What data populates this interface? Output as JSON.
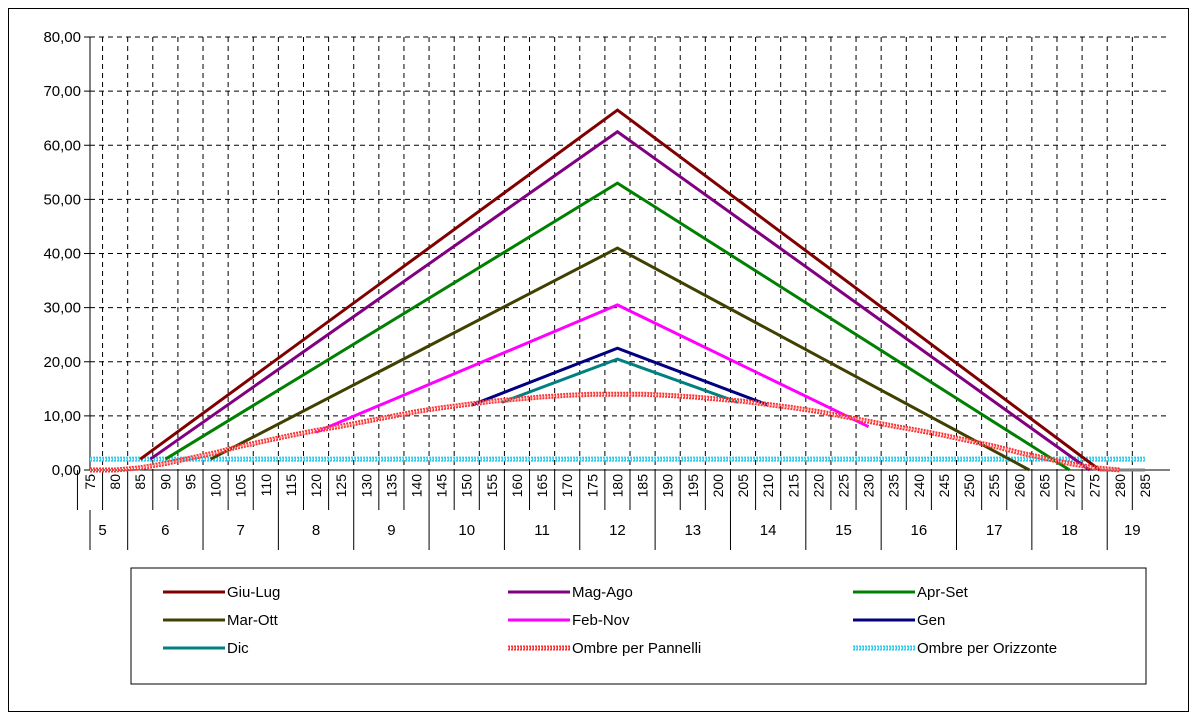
{
  "chart_data": {
    "type": "line",
    "x": [
      75,
      80,
      85,
      90,
      95,
      100,
      105,
      110,
      115,
      120,
      125,
      130,
      135,
      140,
      145,
      150,
      155,
      160,
      165,
      170,
      175,
      180,
      185,
      190,
      195,
      200,
      205,
      210,
      215,
      220,
      225,
      230,
      235,
      240,
      245,
      250,
      255,
      260,
      265,
      270,
      275,
      280,
      285
    ],
    "x_tick_labels": [
      "75",
      "80",
      "85",
      "90",
      "95",
      "100",
      "105",
      "110",
      "115",
      "120",
      "125",
      "130",
      "135",
      "140",
      "145",
      "150",
      "155",
      "160",
      "165",
      "170",
      "175",
      "180",
      "185",
      "190",
      "195",
      "200",
      "205",
      "210",
      "215",
      "220",
      "225",
      "230",
      "235",
      "240",
      "245",
      "250",
      "255",
      "260",
      "265",
      "270",
      "275",
      "280",
      "285"
    ],
    "hour_groups": [
      {
        "label": "5",
        "from": 75,
        "to": 85
      },
      {
        "label": "6",
        "from": 85,
        "to": 100
      },
      {
        "label": "7",
        "from": 100,
        "to": 115
      },
      {
        "label": "8",
        "from": 115,
        "to": 130
      },
      {
        "label": "9",
        "from": 130,
        "to": 145
      },
      {
        "label": "10",
        "from": 145,
        "to": 160
      },
      {
        "label": "11",
        "from": 160,
        "to": 175
      },
      {
        "label": "12",
        "from": 175,
        "to": 190
      },
      {
        "label": "13",
        "from": 190,
        "to": 205
      },
      {
        "label": "14",
        "from": 205,
        "to": 220
      },
      {
        "label": "15",
        "from": 220,
        "to": 235
      },
      {
        "label": "16",
        "from": 235,
        "to": 250
      },
      {
        "label": "17",
        "from": 250,
        "to": 265
      },
      {
        "label": "18",
        "from": 265,
        "to": 280
      },
      {
        "label": "19",
        "from": 280,
        "to": 290
      }
    ],
    "ylim": [
      0,
      80
    ],
    "y_ticks": [
      "0,00",
      "10,00",
      "20,00",
      "30,00",
      "40,00",
      "50,00",
      "60,00",
      "70,00",
      "80,00"
    ],
    "grid": true,
    "legend_position": "bottom",
    "series": [
      {
        "name": "Giu-Lug",
        "color": "#800000",
        "style": "solid",
        "points": [
          [
            85,
            2
          ],
          [
            180,
            66.5
          ],
          [
            276,
            0
          ]
        ]
      },
      {
        "name": "Mag-Ago",
        "color": "#800080",
        "style": "solid",
        "points": [
          [
            87,
            2
          ],
          [
            180,
            62.5
          ],
          [
            274,
            0
          ]
        ]
      },
      {
        "name": "Apr-Set",
        "color": "#008000",
        "style": "solid",
        "points": [
          [
            90,
            2
          ],
          [
            180,
            53
          ],
          [
            270,
            0
          ]
        ]
      },
      {
        "name": "Mar-Ott",
        "color": "#404000",
        "style": "solid",
        "points": [
          [
            99,
            2
          ],
          [
            180,
            41
          ],
          [
            262,
            0
          ]
        ]
      },
      {
        "name": "Feb-Nov",
        "color": "#ff00ff",
        "style": "solid",
        "points": [
          [
            120,
            7
          ],
          [
            180,
            30.5
          ],
          [
            230,
            8
          ]
        ]
      },
      {
        "name": "Gen",
        "color": "#000080",
        "style": "solid",
        "points": [
          [
            151,
            12
          ],
          [
            180,
            22.5
          ],
          [
            210,
            12
          ]
        ]
      },
      {
        "name": "Dic",
        "color": "#008080",
        "style": "solid",
        "points": [
          [
            157,
            12.5
          ],
          [
            180,
            20.5
          ],
          [
            204,
            12.5
          ]
        ]
      },
      {
        "name": "Ombre per Pannelli",
        "color": "#ff3333",
        "style": "pannelli",
        "points": [
          [
            75,
            0
          ],
          [
            80,
            0
          ],
          [
            85,
            0.4
          ],
          [
            90,
            1.2
          ],
          [
            95,
            2.2
          ],
          [
            100,
            3.2
          ],
          [
            105,
            4.4
          ],
          [
            110,
            5.4
          ],
          [
            115,
            6.4
          ],
          [
            120,
            7.3
          ],
          [
            125,
            8.1
          ],
          [
            130,
            9
          ],
          [
            135,
            9.9
          ],
          [
            140,
            10.8
          ],
          [
            145,
            11.5
          ],
          [
            150,
            12.1
          ],
          [
            155,
            12.7
          ],
          [
            160,
            13.1
          ],
          [
            165,
            13.5
          ],
          [
            170,
            13.8
          ],
          [
            175,
            14
          ],
          [
            180,
            14
          ],
          [
            185,
            14
          ],
          [
            190,
            13.8
          ],
          [
            195,
            13.5
          ],
          [
            200,
            13.1
          ],
          [
            205,
            12.7
          ],
          [
            210,
            12.1
          ],
          [
            215,
            11.5
          ],
          [
            220,
            10.8
          ],
          [
            225,
            9.9
          ],
          [
            230,
            9
          ],
          [
            235,
            8.1
          ],
          [
            240,
            7.3
          ],
          [
            245,
            6.4
          ],
          [
            250,
            5.4
          ],
          [
            255,
            4.4
          ],
          [
            260,
            3.2
          ],
          [
            265,
            2.2
          ],
          [
            270,
            1.2
          ],
          [
            275,
            0.4
          ],
          [
            280,
            0
          ]
        ]
      },
      {
        "name": "Ombre per Orizzonte",
        "color": "#33ccee",
        "style": "orizzonte",
        "points": [
          [
            75,
            2
          ],
          [
            285,
            2
          ]
        ]
      },
      {
        "name": "",
        "color": "#808080",
        "style": "solid",
        "points": [
          [
            276,
            0
          ],
          [
            285,
            0
          ]
        ]
      }
    ]
  },
  "legend": [
    {
      "label": "Giu-Lug",
      "color": "#800000",
      "style": "solid"
    },
    {
      "label": "Mag-Ago",
      "color": "#800080",
      "style": "solid"
    },
    {
      "label": "Apr-Set",
      "color": "#008000",
      "style": "solid"
    },
    {
      "label": "Mar-Ott",
      "color": "#404000",
      "style": "solid"
    },
    {
      "label": "Feb-Nov",
      "color": "#ff00ff",
      "style": "solid"
    },
    {
      "label": "Gen",
      "color": "#000080",
      "style": "solid"
    },
    {
      "label": "Dic",
      "color": "#008080",
      "style": "solid"
    },
    {
      "label": "Ombre per Pannelli",
      "color": "#ff3333",
      "style": "pannelli"
    },
    {
      "label": "Ombre per Orizzonte",
      "color": "#33ccee",
      "style": "orizzonte"
    }
  ]
}
